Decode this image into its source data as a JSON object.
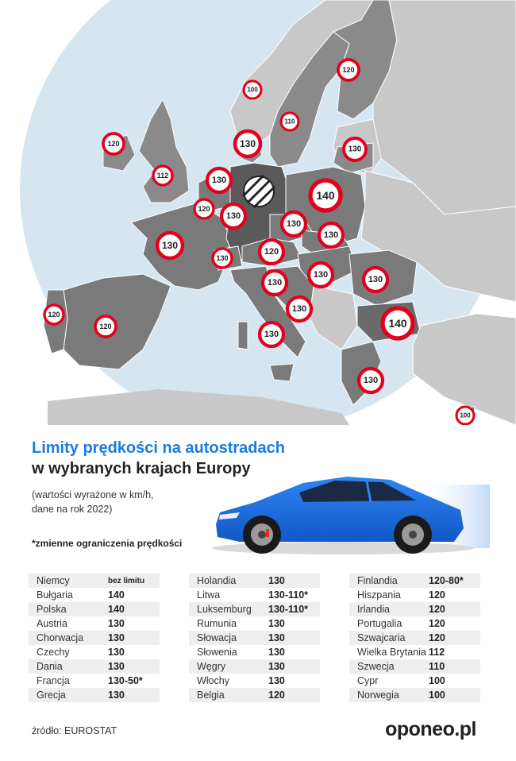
{
  "map": {
    "signs": [
      "120",
      "100",
      "110",
      "130",
      "130",
      "120",
      "112",
      "130",
      "140",
      "120",
      "130",
      "130",
      "130",
      "130",
      "120",
      "130",
      "130",
      "130",
      "130",
      "130",
      "120",
      "120",
      "140",
      "130",
      "130",
      "100"
    ],
    "no_limit_sign": "no-speed-limit-sign"
  },
  "title": {
    "line1": "Limity prędkości na autostradach",
    "line2": "w wybranych krajach Europy"
  },
  "subtitle": {
    "line1": "(wartości wyrażone w km/h,",
    "line2": "dane na rok 2022)"
  },
  "note": "*zmienne ograniczenia prędkości",
  "table1": [
    {
      "country": "Niemcy",
      "value": "bez limitu"
    },
    {
      "country": "Bułgaria",
      "value": "140"
    },
    {
      "country": "Polska",
      "value": "140"
    },
    {
      "country": "Austria",
      "value": "130"
    },
    {
      "country": "Chorwacja",
      "value": "130"
    },
    {
      "country": "Czechy",
      "value": "130"
    },
    {
      "country": "Dania",
      "value": "130"
    },
    {
      "country": "Francja",
      "value": "130-50*"
    },
    {
      "country": "Grecja",
      "value": "130"
    }
  ],
  "table2": [
    {
      "country": "Holandia",
      "value": "130"
    },
    {
      "country": "Litwa",
      "value": "130-110*"
    },
    {
      "country": "Luksemburg",
      "value": "130-110*"
    },
    {
      "country": "Rumunia",
      "value": "130"
    },
    {
      "country": "Słowacja",
      "value": "130"
    },
    {
      "country": "Słowenia",
      "value": "130"
    },
    {
      "country": "Węgry",
      "value": "130"
    },
    {
      "country": "Włochy",
      "value": "130"
    },
    {
      "country": "Belgia",
      "value": "120"
    }
  ],
  "table3": [
    {
      "country": "Finlandia",
      "value": "120-80*"
    },
    {
      "country": "Hiszpania",
      "value": "120"
    },
    {
      "country": "Irlandia",
      "value": "120"
    },
    {
      "country": "Portugalia",
      "value": "120"
    },
    {
      "country": "Szwajcaria",
      "value": "120"
    },
    {
      "country": "Wielka Brytania",
      "value": "112"
    },
    {
      "country": "Szwecja",
      "value": "110"
    },
    {
      "country": "Cypr",
      "value": "100"
    },
    {
      "country": "Norwegia",
      "value": "100"
    }
  ],
  "source": "źródło: EUROSTAT",
  "logo": "oponeo.pl",
  "colors": {
    "accent": "#1a7be0",
    "sign_border": "#e2001a",
    "map_circle": "#d6e6f1",
    "country_selected": "#7a7a7a",
    "country_other": "#c8c8c8",
    "germany": "#5a5a5a",
    "car": "#1a6ee8"
  }
}
